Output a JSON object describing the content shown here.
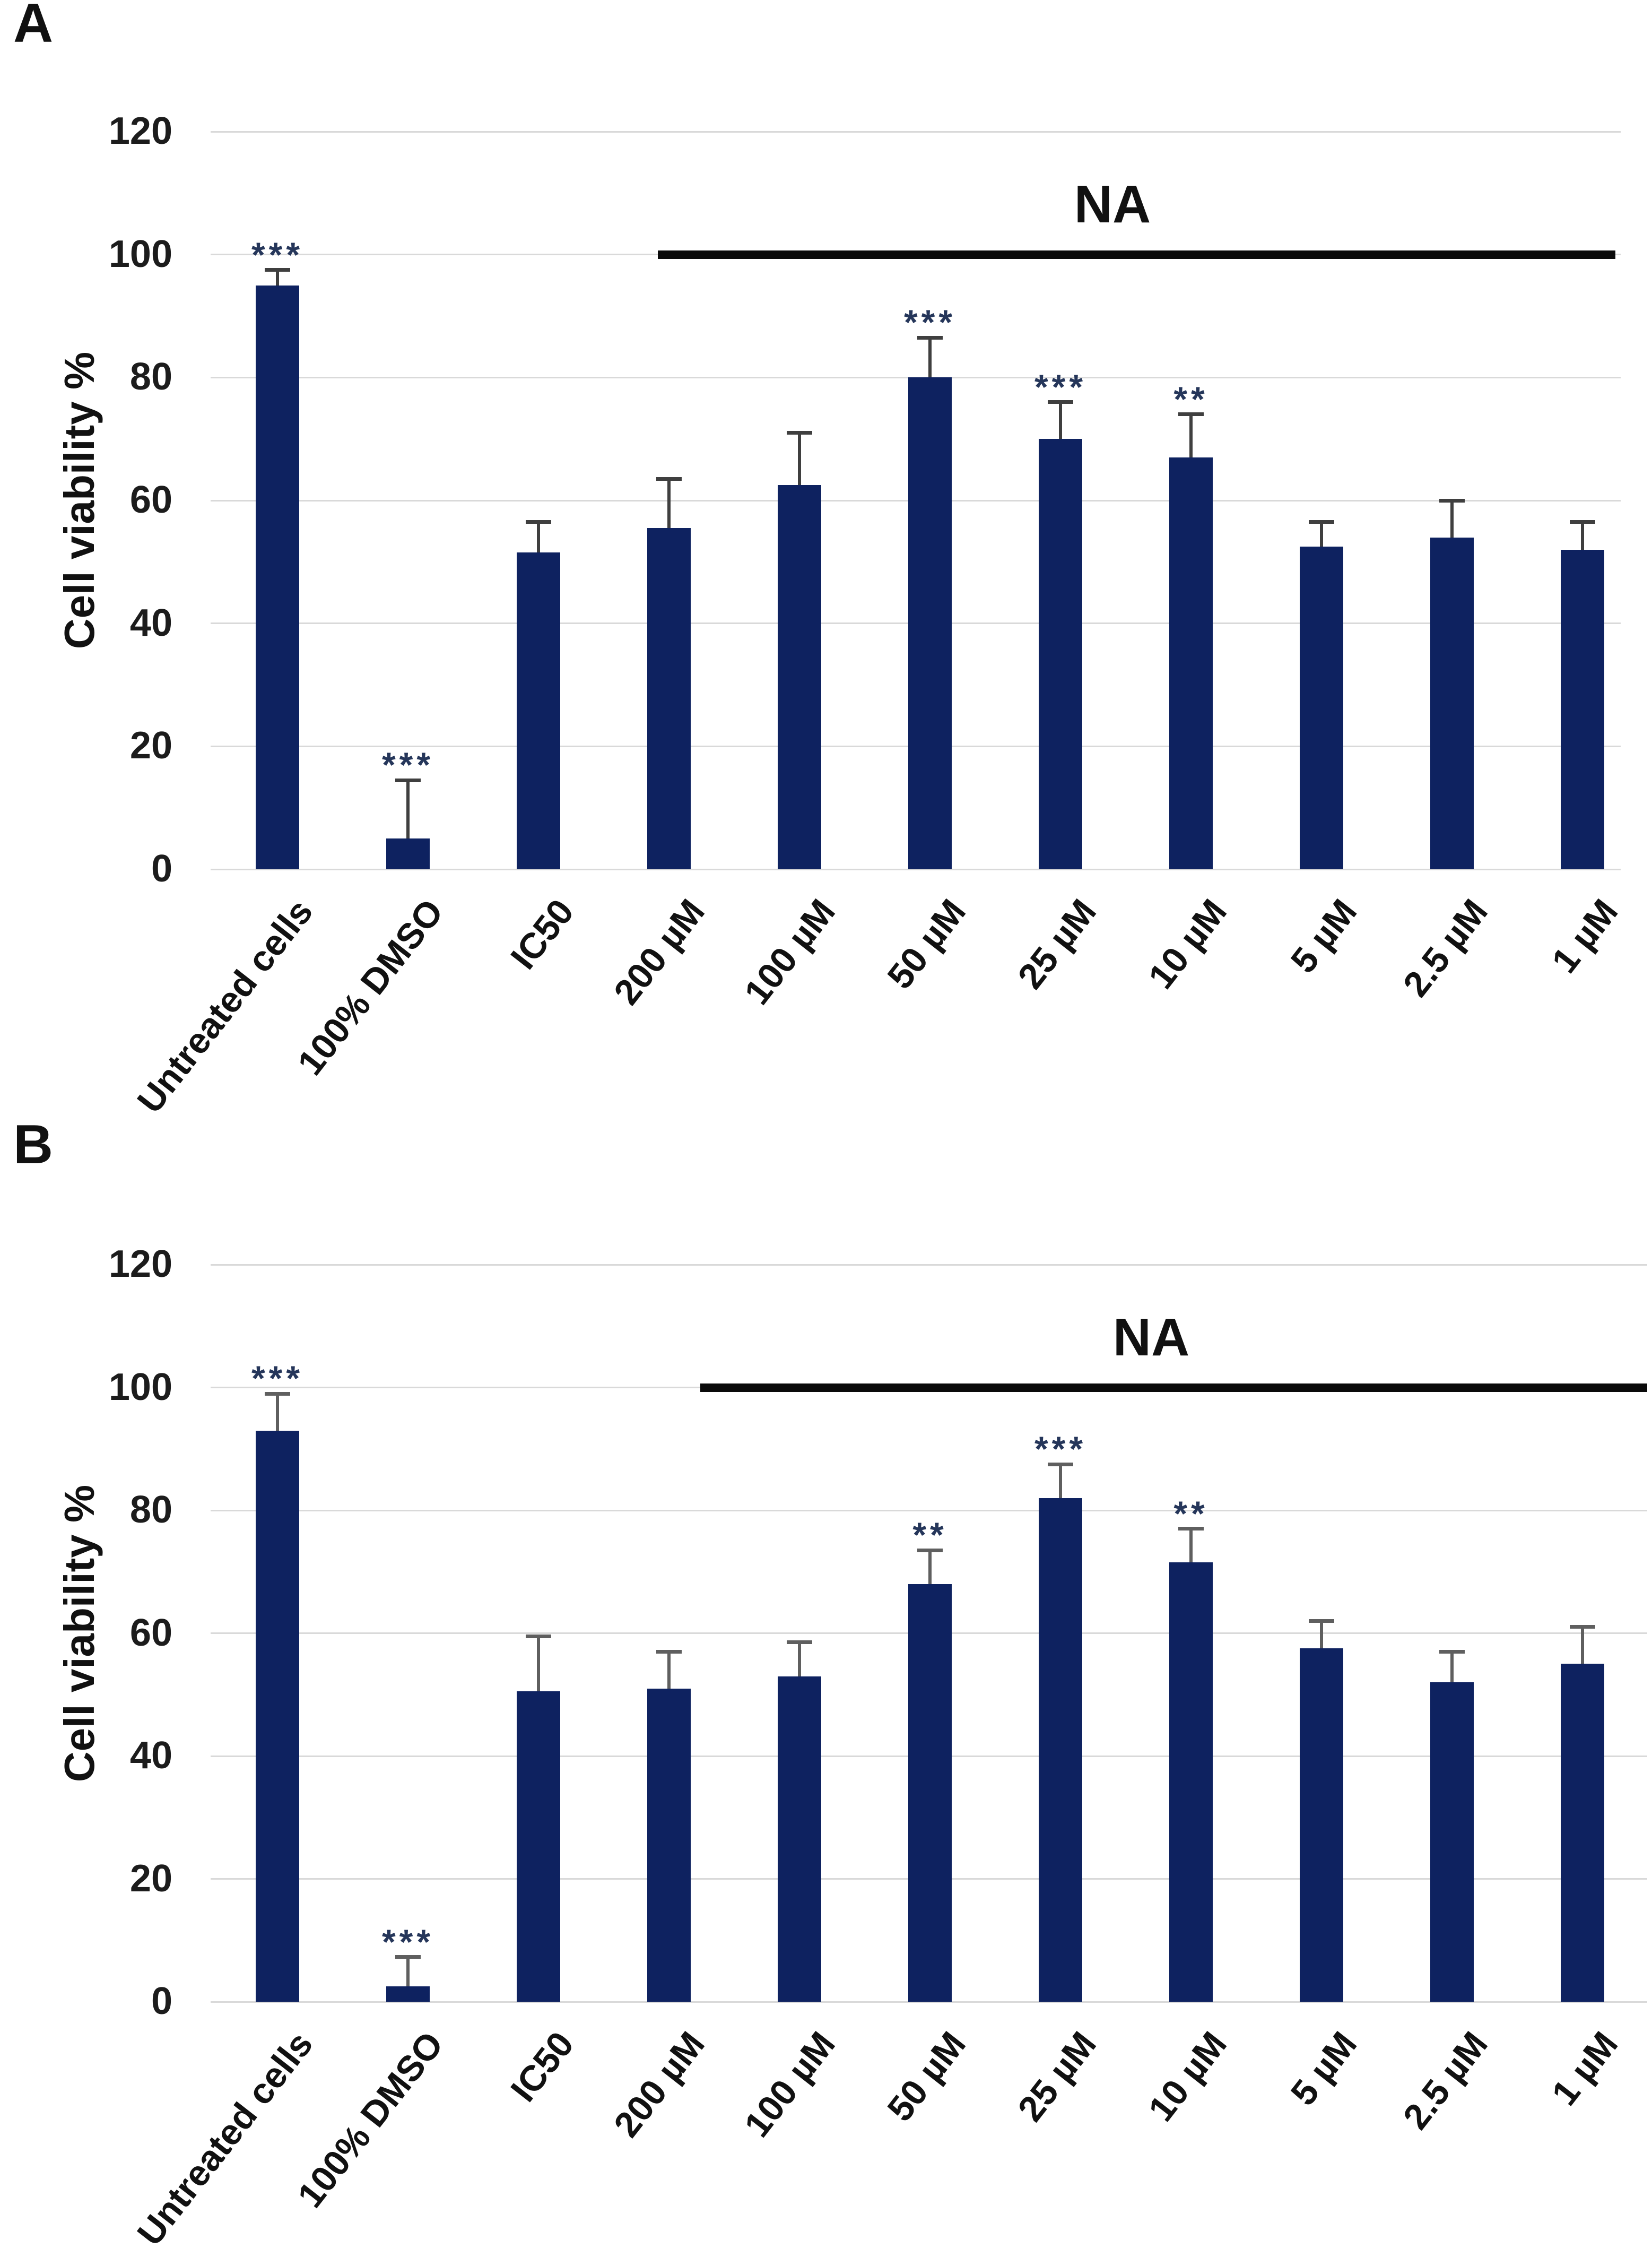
{
  "page": {
    "background": "#ffffff"
  },
  "colors": {
    "bar": "#0e2260",
    "gridline": "#d9d9d9",
    "error_bar_panel_a": "#3f3f3f",
    "error_bar_panel_b": "#5f5f5f",
    "significance": "#25365a",
    "na_line": "#0a0a0a",
    "text": "#1a1a1a"
  },
  "chart_data": [
    {
      "type": "bar",
      "panel_label": "A",
      "title": "",
      "xlabel": "",
      "ylabel": "Cell viability %",
      "ylim": [
        0,
        120
      ],
      "yticks": [
        0,
        20,
        40,
        60,
        80,
        100,
        120
      ],
      "grid": true,
      "legend": "none",
      "categories": [
        "Untreated cells",
        "100% DMSO",
        "IC50",
        "200 µM",
        "100 µM",
        "50 µM",
        "25 µM",
        "10 µM",
        "5 µM",
        "2.5 µM",
        "1 µM"
      ],
      "values": [
        95,
        5,
        51.5,
        55.5,
        62.5,
        80,
        70,
        67,
        52.5,
        54,
        52
      ],
      "errors": [
        2.5,
        9.5,
        5,
        8,
        8.5,
        6.5,
        6,
        7,
        4,
        6,
        4.5
      ],
      "significance": [
        "***",
        "***",
        "",
        "",
        "",
        "***",
        "***",
        "**",
        "",
        "",
        ""
      ],
      "annotation": {
        "label": "NA",
        "level": 100,
        "spans_categories": [
          "200 µM",
          "1 µM"
        ]
      }
    },
    {
      "type": "bar",
      "panel_label": "B",
      "title": "",
      "xlabel": "",
      "ylabel": "Cell viability %",
      "ylim": [
        0,
        120
      ],
      "yticks": [
        0,
        20,
        40,
        60,
        80,
        100,
        120
      ],
      "grid": true,
      "legend": "none",
      "categories": [
        "Untreated cells",
        "100% DMSO",
        "IC50",
        "200 µM",
        "100 µM",
        "50 µM",
        "25 µM",
        "10 µM",
        "5 µM",
        "2.5 µM",
        "1 µM"
      ],
      "values": [
        93,
        2.5,
        50.5,
        51,
        53,
        68,
        82,
        71.5,
        57.5,
        52,
        55
      ],
      "errors": [
        6,
        4.8,
        9,
        6,
        5.5,
        5.5,
        5.5,
        5.5,
        4.5,
        5,
        6
      ],
      "significance": [
        "***",
        "***",
        "",
        "",
        "",
        "**",
        "***",
        "**",
        "",
        "",
        ""
      ],
      "annotation": {
        "label": "NA",
        "level": 100,
        "spans_categories": [
          "200 µM",
          "1 µM"
        ]
      }
    }
  ]
}
